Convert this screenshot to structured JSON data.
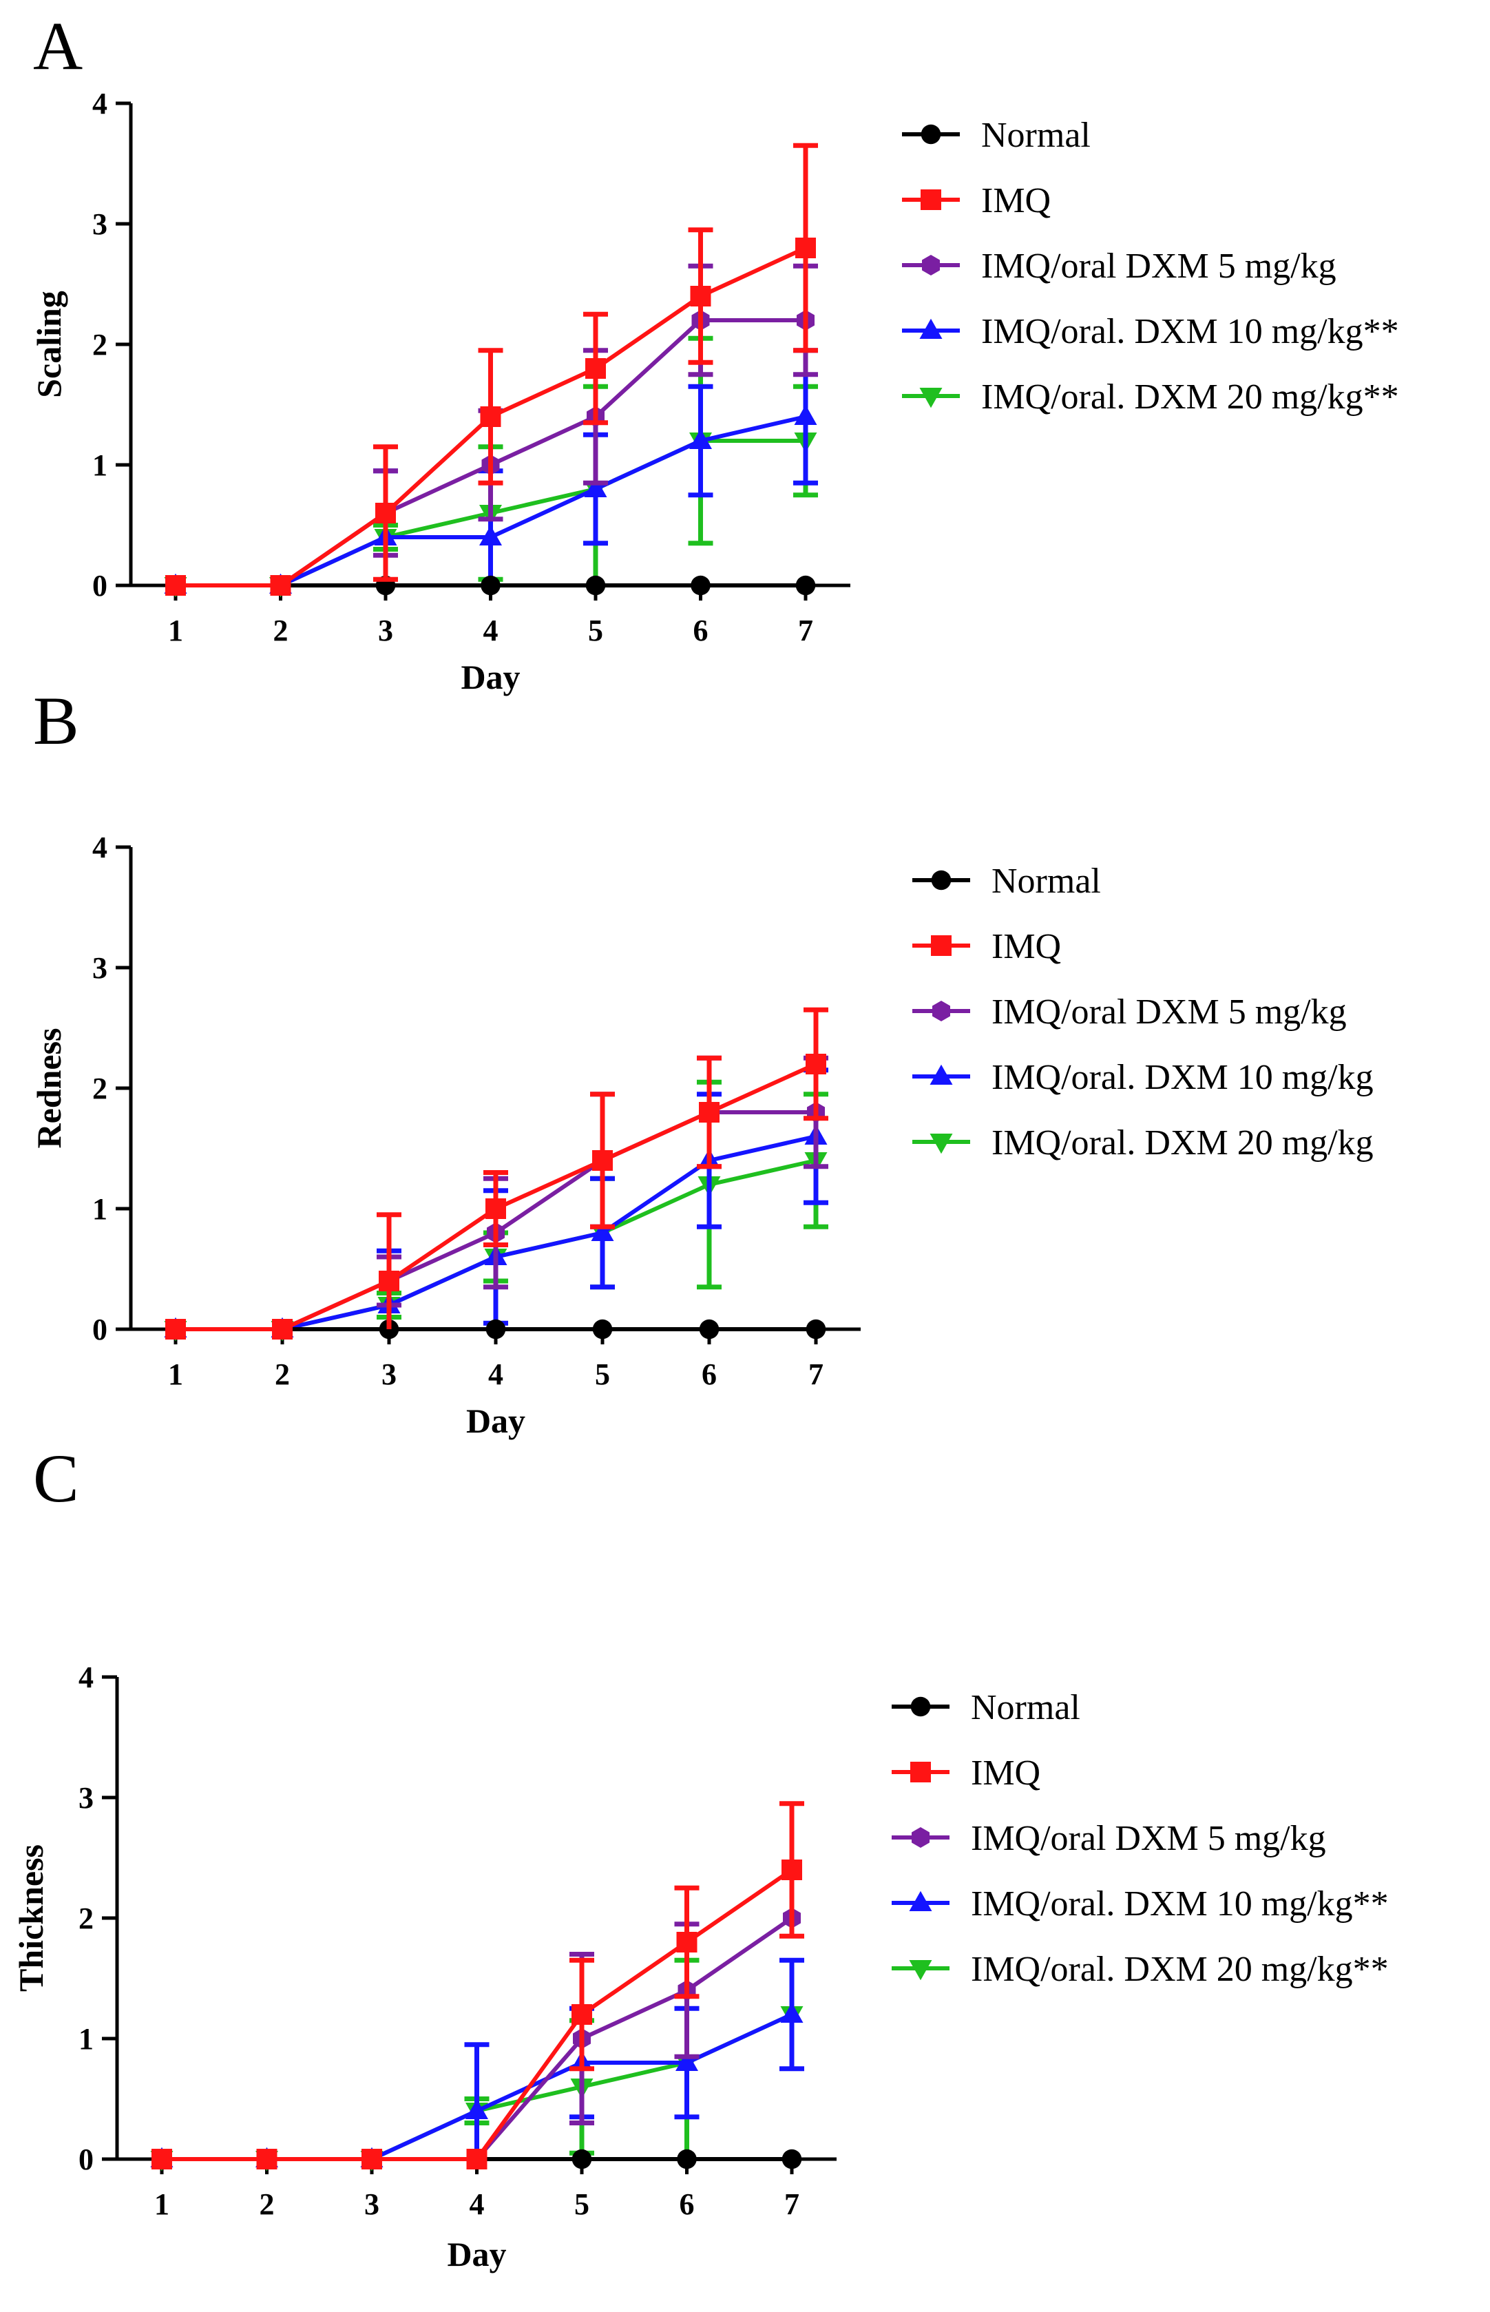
{
  "colors": {
    "Normal": "#000000",
    "IMQ": "#ff1414",
    "IMQ/oral DXM 5 mg/kg": "#7a1fa2",
    "IMQ/oral. DXM 10 mg/kg": "#1414ff",
    "IMQ/oral. DXM 20 mg/kg": "#1fbf1f"
  },
  "chart_data": [
    {
      "panel": "A",
      "type": "line",
      "title": "",
      "xlabel": "Day",
      "ylabel": "Scaling",
      "x": [
        1,
        2,
        3,
        4,
        5,
        6,
        7
      ],
      "ylim": [
        0,
        4
      ],
      "yticks": [
        0,
        1,
        2,
        3,
        4
      ],
      "series": [
        {
          "name": "Normal",
          "label": "Normal",
          "marker": "circle",
          "values": [
            0,
            0,
            0,
            0,
            0,
            0,
            0
          ],
          "errors": [
            0,
            0,
            0,
            0,
            0,
            0,
            0
          ]
        },
        {
          "name": "IMQ",
          "label": "IMQ",
          "marker": "square",
          "values": [
            0,
            0,
            0.6,
            1.4,
            1.8,
            2.4,
            2.8
          ],
          "errors": [
            0,
            0,
            0.55,
            0.55,
            0.45,
            0.55,
            0.85
          ]
        },
        {
          "name": "IMQ/oral DXM 5 mg/kg",
          "label": "IMQ/oral DXM 5 mg/kg",
          "marker": "hexagon",
          "values": [
            0,
            0,
            0.6,
            1.0,
            1.4,
            2.2,
            2.2
          ],
          "errors": [
            0,
            0,
            0.35,
            0.45,
            0.55,
            0.45,
            0.45
          ]
        },
        {
          "name": "IMQ/oral. DXM 10 mg/kg",
          "label": "IMQ/oral. DXM 10 mg/kg**",
          "marker": "triangle-up",
          "values": [
            0,
            0,
            0.4,
            0.4,
            0.8,
            1.2,
            1.4
          ],
          "errors": [
            0,
            0,
            0.55,
            0.55,
            0.45,
            0.45,
            0.55
          ]
        },
        {
          "name": "IMQ/oral. DXM 20 mg/kg",
          "label": "IMQ/oral. DXM 20 mg/kg**",
          "marker": "triangle-down",
          "values": [
            0,
            0,
            0.4,
            0.6,
            0.8,
            1.2,
            1.2
          ],
          "errors": [
            0,
            0,
            0.1,
            0.55,
            0.85,
            0.85,
            0.45
          ]
        }
      ]
    },
    {
      "panel": "B",
      "type": "line",
      "title": "",
      "xlabel": "Day",
      "ylabel": "Redness",
      "x": [
        1,
        2,
        3,
        4,
        5,
        6,
        7
      ],
      "ylim": [
        0,
        4
      ],
      "yticks": [
        0,
        1,
        2,
        3,
        4
      ],
      "series": [
        {
          "name": "Normal",
          "label": "Normal",
          "marker": "circle",
          "values": [
            0,
            0,
            0,
            0,
            0,
            0,
            0
          ],
          "errors": [
            0,
            0,
            0,
            0,
            0,
            0,
            0
          ]
        },
        {
          "name": "IMQ",
          "label": "IMQ",
          "marker": "square",
          "values": [
            0,
            0,
            0.4,
            1.0,
            1.4,
            1.8,
            2.2
          ],
          "errors": [
            0,
            0,
            0.55,
            0.3,
            0.55,
            0.45,
            0.45
          ]
        },
        {
          "name": "IMQ/oral DXM 5 mg/kg",
          "label": "IMQ/oral DXM 5 mg/kg",
          "marker": "hexagon",
          "values": [
            0,
            0,
            0.4,
            0.8,
            1.4,
            1.8,
            1.8
          ],
          "errors": [
            0,
            0,
            0.2,
            0.45,
            0.55,
            0.45,
            0.45
          ]
        },
        {
          "name": "IMQ/oral. DXM 10 mg/kg",
          "label": "IMQ/oral. DXM 10 mg/kg",
          "marker": "triangle-up",
          "values": [
            0,
            0,
            0.2,
            0.6,
            0.8,
            1.4,
            1.6
          ],
          "errors": [
            0,
            0,
            0.45,
            0.55,
            0.45,
            0.55,
            0.55
          ]
        },
        {
          "name": "IMQ/oral. DXM 20 mg/kg",
          "label": "IMQ/oral. DXM 20 mg/kg",
          "marker": "triangle-down",
          "values": [
            0,
            0,
            0.2,
            0.6,
            0.8,
            1.2,
            1.4
          ],
          "errors": [
            0,
            0,
            0.1,
            0.2,
            0.45,
            0.85,
            0.55
          ]
        }
      ]
    },
    {
      "panel": "C",
      "type": "line",
      "title": "",
      "xlabel": "Day",
      "ylabel": "Thickness",
      "x": [
        1,
        2,
        3,
        4,
        5,
        6,
        7
      ],
      "ylim": [
        0,
        4
      ],
      "yticks": [
        0,
        1,
        2,
        3,
        4
      ],
      "series": [
        {
          "name": "Normal",
          "label": "Normal",
          "marker": "circle",
          "values": [
            0,
            0,
            0,
            0,
            0,
            0,
            0
          ],
          "errors": [
            0,
            0,
            0,
            0,
            0,
            0,
            0
          ]
        },
        {
          "name": "IMQ",
          "label": "IMQ",
          "marker": "square",
          "values": [
            0,
            0,
            0,
            0,
            1.2,
            1.8,
            2.4
          ],
          "errors": [
            0,
            0,
            0,
            0,
            0.45,
            0.45,
            0.55
          ]
        },
        {
          "name": "IMQ/oral DXM 5 mg/kg",
          "label": "IMQ/oral DXM 5 mg/kg",
          "marker": "hexagon",
          "values": [
            0,
            0,
            0,
            0,
            1.0,
            1.4,
            2.0
          ],
          "errors": [
            0,
            0,
            0,
            0,
            0.7,
            0.55,
            0.0
          ]
        },
        {
          "name": "IMQ/oral. DXM 10 mg/kg",
          "label": "IMQ/oral. DXM 10 mg/kg**",
          "marker": "triangle-up",
          "values": [
            0,
            0,
            0,
            0.4,
            0.8,
            0.8,
            1.2
          ],
          "errors": [
            0,
            0,
            0,
            0.55,
            0.45,
            0.45,
            0.45
          ]
        },
        {
          "name": "IMQ/oral. DXM 20 mg/kg",
          "label": "IMQ/oral. DXM 20 mg/kg**",
          "marker": "triangle-down",
          "values": [
            0,
            0,
            0,
            0.4,
            0.6,
            0.8,
            1.2
          ],
          "errors": [
            0,
            0,
            0,
            0.1,
            0.55,
            0.85,
            0.0
          ]
        }
      ]
    }
  ]
}
